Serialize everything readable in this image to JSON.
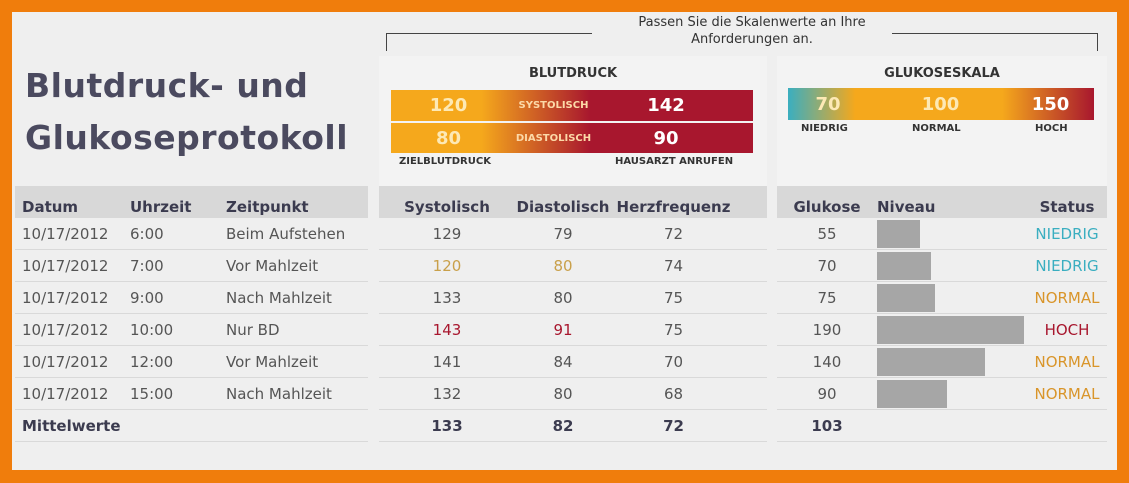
{
  "title": [
    "Blutdruck- und",
    "Glukoseprotokoll"
  ],
  "note": "Passen Sie die Skalenwerte an Ihre Anforderungen an.",
  "bp": {
    "title": "BLUTDRUCK",
    "sys_target": "120",
    "sys_label": "SYSTOLISCH",
    "sys_call": "142",
    "dia_target": "80",
    "dia_label": "DIASTOLISCH",
    "dia_call": "90",
    "target_label": "ZIELBLUTDRUCK",
    "call_label": "HAUSARZT ANRUFEN"
  },
  "gl": {
    "title": "GLUKOSESKALA",
    "low": "70",
    "normal": "100",
    "high": "150",
    "low_label": "NIEDRIG",
    "normal_label": "NORMAL",
    "high_label": "HOCH"
  },
  "colors": {
    "orange": "#f5a81c",
    "red": "#a8172e",
    "teal": "#3aaec0",
    "low_text": "#3aaec0",
    "normal_text": "#d9952a",
    "high_text": "#a8172e",
    "target_text": "#c9a04a"
  },
  "headers": {
    "datum": "Datum",
    "uhrzeit": "Uhrzeit",
    "zeitpunkt": "Zeitpunkt",
    "sys": "Systolisch",
    "dia": "Diastolisch",
    "hf": "Herzfrequenz",
    "glukose": "Glukose",
    "niveau": "Niveau",
    "status": "Status"
  },
  "rows": [
    {
      "datum": "10/17/2012",
      "uhrzeit": "6:00",
      "zeitpunkt": "Beim Aufstehen",
      "sys": "129",
      "dia": "79",
      "hf": "72",
      "glukose": "55",
      "status": "NIEDRIG",
      "bp_state": "normal",
      "gl_state": "low"
    },
    {
      "datum": "10/17/2012",
      "uhrzeit": "7:00",
      "zeitpunkt": "Vor Mahlzeit",
      "sys": "120",
      "dia": "80",
      "hf": "74",
      "glukose": "70",
      "status": "NIEDRIG",
      "bp_state": "target",
      "gl_state": "low"
    },
    {
      "datum": "10/17/2012",
      "uhrzeit": "9:00",
      "zeitpunkt": "Nach Mahlzeit",
      "sys": "133",
      "dia": "80",
      "hf": "75",
      "glukose": "75",
      "status": "NORMAL",
      "bp_state": "normal",
      "gl_state": "normal"
    },
    {
      "datum": "10/17/2012",
      "uhrzeit": "10:00",
      "zeitpunkt": "Nur BD",
      "sys": "143",
      "dia": "91",
      "hf": "75",
      "glukose": "190",
      "status": "HOCH",
      "bp_state": "high",
      "gl_state": "high"
    },
    {
      "datum": "10/17/2012",
      "uhrzeit": "12:00",
      "zeitpunkt": "Vor Mahlzeit",
      "sys": "141",
      "dia": "84",
      "hf": "70",
      "glukose": "140",
      "status": "NORMAL",
      "bp_state": "normal",
      "gl_state": "normal"
    },
    {
      "datum": "10/17/2012",
      "uhrzeit": "15:00",
      "zeitpunkt": "Nach Mahlzeit",
      "sys": "132",
      "dia": "80",
      "hf": "68",
      "glukose": "90",
      "status": "NORMAL",
      "bp_state": "normal",
      "gl_state": "normal"
    }
  ],
  "averages": {
    "label": "Mittelwerte",
    "sys": "133",
    "dia": "82",
    "hf": "72",
    "glukose": "103"
  }
}
